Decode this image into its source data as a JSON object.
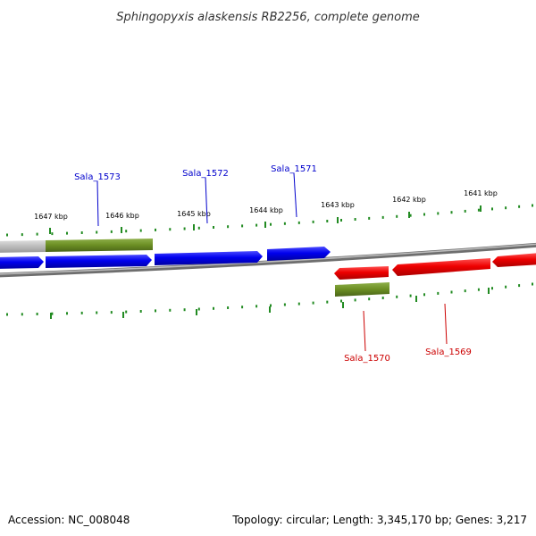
{
  "title": "Sphingopyxis alaskensis RB2256, complete genome",
  "footer": {
    "accession": "Accession: NC_008048",
    "summary": "Topology: circular; Length: 3,345,170 bp; Genes: 3,217"
  },
  "colors": {
    "forward_gene": "#0000ee",
    "reverse_gene": "#ee0000",
    "cds": "#6b8e23",
    "ticks": "#228b22",
    "backbone": "#777777"
  },
  "ticks": {
    "upper": [
      "1647 kbp",
      "1646 kbp",
      "1645 kbp",
      "1644 kbp",
      "1643 kbp",
      "1642 kbp",
      "1641 kbp"
    ]
  },
  "genes": [
    {
      "label": "Sala_1573",
      "strand": "forward"
    },
    {
      "label": "Sala_1572",
      "strand": "forward"
    },
    {
      "label": "Sala_1571",
      "strand": "forward"
    },
    {
      "label": "Sala_1570",
      "strand": "reverse"
    },
    {
      "label": "Sala_1569",
      "strand": "reverse"
    }
  ]
}
